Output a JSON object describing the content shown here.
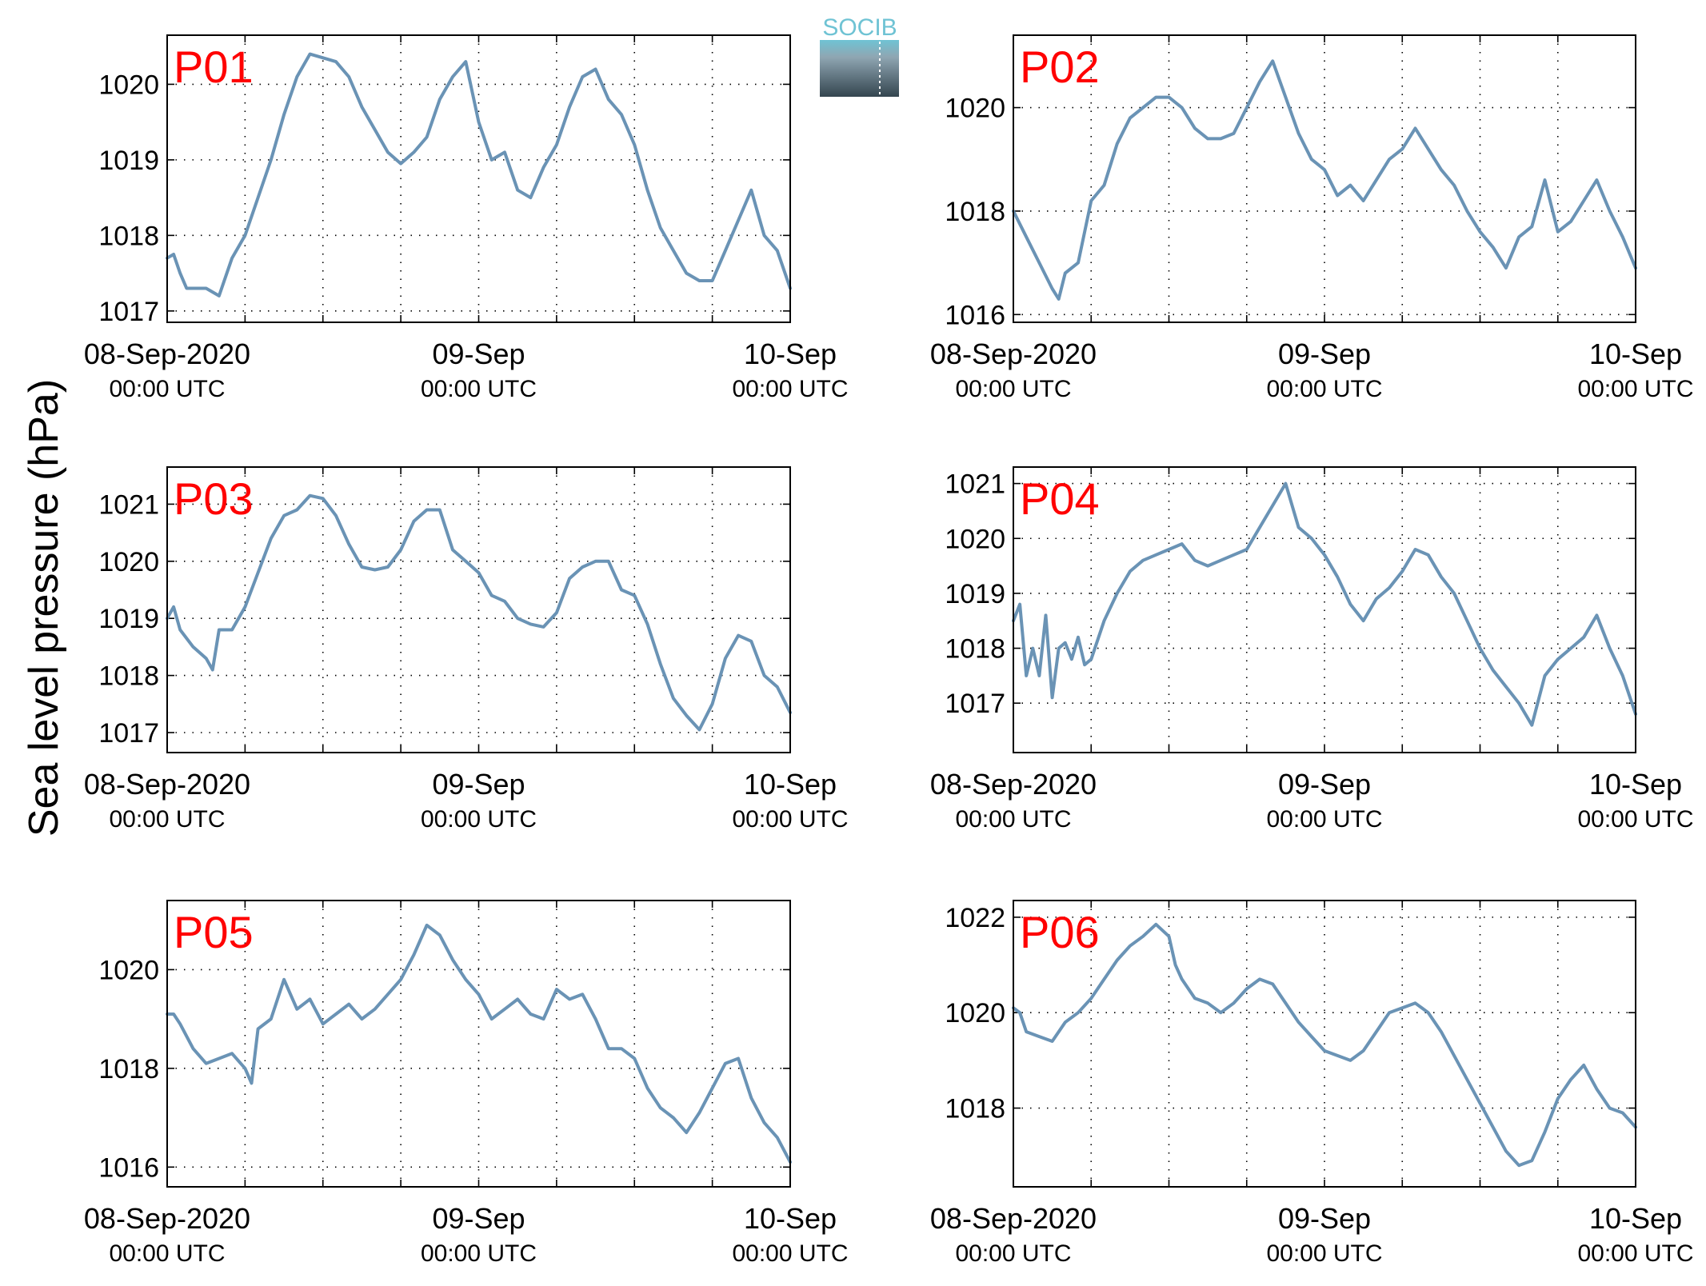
{
  "figure": {
    "ylabel": "Sea level pressure (hPa)",
    "logo_text": "SOCIB",
    "line_color": "#6a93b5",
    "panel_label_color": "#ff0000",
    "grid": "dotted"
  },
  "chart_data": [
    {
      "type": "line",
      "panel_label": "P01",
      "x_unit": "hours since 08-Sep-2020 00:00 UTC",
      "xlim": [
        0,
        48
      ],
      "ylim": [
        1016.85,
        1020.65
      ],
      "yticks": [
        1017,
        1018,
        1019,
        1020
      ],
      "xticks": [
        {
          "x": 0,
          "line1": "08-Sep-2020",
          "line2": "00:00 UTC"
        },
        {
          "x": 24,
          "line1": "09-Sep",
          "line2": "00:00 UTC"
        },
        {
          "x": 48,
          "line1": "10-Sep",
          "line2": "00:00 UTC"
        }
      ],
      "series": [
        {
          "x": [
            0,
            0.5,
            1,
            1.5,
            2,
            3,
            4,
            5,
            6,
            7,
            8,
            9,
            10,
            11,
            12,
            13,
            14,
            15,
            16,
            17,
            18,
            19,
            20,
            21,
            22,
            23,
            24,
            25,
            26,
            27,
            28,
            29,
            30,
            31,
            32,
            33,
            34,
            35,
            36,
            37,
            38,
            39,
            40,
            41,
            42,
            43,
            44,
            45,
            46,
            47,
            48
          ],
          "y": [
            1017.7,
            1017.75,
            1017.5,
            1017.3,
            1017.3,
            1017.3,
            1017.2,
            1017.7,
            1018.0,
            1018.5,
            1019.0,
            1019.6,
            1020.1,
            1020.4,
            1020.35,
            1020.3,
            1020.1,
            1019.7,
            1019.4,
            1019.1,
            1018.95,
            1019.1,
            1019.3,
            1019.8,
            1020.1,
            1020.3,
            1019.5,
            1019.0,
            1019.1,
            1018.6,
            1018.5,
            1018.9,
            1019.2,
            1019.7,
            1020.1,
            1020.2,
            1019.8,
            1019.6,
            1019.2,
            1018.6,
            1018.1,
            1017.8,
            1017.5,
            1017.4,
            1017.4,
            1017.8,
            1018.2,
            1018.6,
            1018.0,
            1017.8,
            1017.3
          ]
        }
      ]
    },
    {
      "type": "line",
      "panel_label": "P02",
      "x_unit": "hours since 08-Sep-2020 00:00 UTC",
      "xlim": [
        0,
        48
      ],
      "ylim": [
        1015.85,
        1021.4
      ],
      "yticks": [
        1016,
        1018,
        1020
      ],
      "xticks": [
        {
          "x": 0,
          "line1": "08-Sep-2020",
          "line2": "00:00 UTC"
        },
        {
          "x": 24,
          "line1": "09-Sep",
          "line2": "00:00 UTC"
        },
        {
          "x": 48,
          "line1": "10-Sep",
          "line2": "00:00 UTC"
        }
      ],
      "series": [
        {
          "x": [
            0,
            1,
            2,
            3,
            3.5,
            4,
            5,
            6,
            7,
            8,
            9,
            10,
            11,
            12,
            13,
            14,
            15,
            16,
            17,
            18,
            19,
            20,
            21,
            22,
            23,
            24,
            25,
            26,
            27,
            28,
            29,
            30,
            31,
            32,
            33,
            34,
            35,
            36,
            37,
            38,
            39,
            40,
            41,
            42,
            43,
            44,
            45,
            46,
            47,
            48
          ],
          "y": [
            1018.0,
            1017.5,
            1017.0,
            1016.5,
            1016.3,
            1016.8,
            1017.0,
            1018.2,
            1018.5,
            1019.3,
            1019.8,
            1020.0,
            1020.2,
            1020.2,
            1020.0,
            1019.6,
            1019.4,
            1019.4,
            1019.5,
            1020.0,
            1020.5,
            1020.9,
            1020.2,
            1019.5,
            1019.0,
            1018.8,
            1018.3,
            1018.5,
            1018.2,
            1018.6,
            1019.0,
            1019.2,
            1019.6,
            1019.2,
            1018.8,
            1018.5,
            1018.0,
            1017.6,
            1017.3,
            1016.9,
            1017.5,
            1017.7,
            1018.6,
            1017.6,
            1017.8,
            1018.2,
            1018.6,
            1018.0,
            1017.5,
            1016.9
          ]
        }
      ]
    },
    {
      "type": "line",
      "panel_label": "P03",
      "x_unit": "hours since 08-Sep-2020 00:00 UTC",
      "xlim": [
        0,
        48
      ],
      "ylim": [
        1016.65,
        1021.65
      ],
      "yticks": [
        1017,
        1018,
        1019,
        1020,
        1021
      ],
      "xticks": [
        {
          "x": 0,
          "line1": "08-Sep-2020",
          "line2": "00:00 UTC"
        },
        {
          "x": 24,
          "line1": "09-Sep",
          "line2": "00:00 UTC"
        },
        {
          "x": 48,
          "line1": "10-Sep",
          "line2": "00:00 UTC"
        }
      ],
      "series": [
        {
          "x": [
            0,
            0.5,
            1,
            2,
            3,
            3.5,
            4,
            5,
            6,
            7,
            8,
            9,
            10,
            11,
            12,
            13,
            14,
            15,
            16,
            17,
            18,
            19,
            20,
            21,
            22,
            23,
            24,
            25,
            26,
            27,
            28,
            29,
            30,
            31,
            32,
            33,
            34,
            35,
            36,
            37,
            38,
            39,
            40,
            41,
            42,
            43,
            44,
            45,
            46,
            47,
            48
          ],
          "y": [
            1019.0,
            1019.2,
            1018.8,
            1018.5,
            1018.3,
            1018.1,
            1018.8,
            1018.8,
            1019.2,
            1019.8,
            1020.4,
            1020.8,
            1020.9,
            1021.15,
            1021.1,
            1020.8,
            1020.3,
            1019.9,
            1019.85,
            1019.9,
            1020.2,
            1020.7,
            1020.9,
            1020.9,
            1020.2,
            1020.0,
            1019.8,
            1019.4,
            1019.3,
            1019.0,
            1018.9,
            1018.85,
            1019.1,
            1019.7,
            1019.9,
            1020.0,
            1020.0,
            1019.5,
            1019.4,
            1018.9,
            1018.2,
            1017.6,
            1017.3,
            1017.05,
            1017.5,
            1018.3,
            1018.7,
            1018.6,
            1018.0,
            1017.8,
            1017.35
          ]
        }
      ]
    },
    {
      "type": "line",
      "panel_label": "P04",
      "x_unit": "hours since 08-Sep-2020 00:00 UTC",
      "xlim": [
        0,
        48
      ],
      "ylim": [
        1016.1,
        1021.3
      ],
      "yticks": [
        1017,
        1018,
        1019,
        1020,
        1021
      ],
      "xticks": [
        {
          "x": 0,
          "line1": "08-Sep-2020",
          "line2": "00:00 UTC"
        },
        {
          "x": 24,
          "line1": "09-Sep",
          "line2": "00:00 UTC"
        },
        {
          "x": 48,
          "line1": "10-Sep",
          "line2": "00:00 UTC"
        }
      ],
      "series": [
        {
          "x": [
            0,
            0.5,
            1,
            1.5,
            2,
            2.5,
            3,
            3.5,
            4,
            4.5,
            5,
            5.5,
            6,
            7,
            8,
            9,
            10,
            11,
            12,
            13,
            14,
            15,
            16,
            17,
            18,
            19,
            20,
            21,
            22,
            23,
            24,
            25,
            26,
            27,
            28,
            29,
            30,
            31,
            32,
            33,
            34,
            35,
            36,
            37,
            38,
            39,
            40,
            41,
            42,
            43,
            44,
            45,
            46,
            47,
            48
          ],
          "y": [
            1018.5,
            1018.8,
            1017.5,
            1018.0,
            1017.5,
            1018.6,
            1017.1,
            1018.0,
            1018.1,
            1017.8,
            1018.2,
            1017.7,
            1017.8,
            1018.5,
            1019.0,
            1019.4,
            1019.6,
            1019.7,
            1019.8,
            1019.9,
            1019.6,
            1019.5,
            1019.6,
            1019.7,
            1019.8,
            1020.2,
            1020.6,
            1021.0,
            1020.2,
            1020.0,
            1019.7,
            1019.3,
            1018.8,
            1018.5,
            1018.9,
            1019.1,
            1019.4,
            1019.8,
            1019.7,
            1019.3,
            1019.0,
            1018.5,
            1018.0,
            1017.6,
            1017.3,
            1017.0,
            1016.6,
            1017.5,
            1017.8,
            1018.0,
            1018.2,
            1018.6,
            1018.0,
            1017.5,
            1016.8
          ]
        }
      ]
    },
    {
      "type": "line",
      "panel_label": "P05",
      "x_unit": "hours since 08-Sep-2020 00:00 UTC",
      "xlim": [
        0,
        48
      ],
      "ylim": [
        1015.6,
        1021.4
      ],
      "yticks": [
        1016,
        1018,
        1020
      ],
      "xticks": [
        {
          "x": 0,
          "line1": "08-Sep-2020",
          "line2": "00:00 UTC"
        },
        {
          "x": 24,
          "line1": "09-Sep",
          "line2": "00:00 UTC"
        },
        {
          "x": 48,
          "line1": "10-Sep",
          "line2": "00:00 UTC"
        }
      ],
      "series": [
        {
          "x": [
            0,
            0.5,
            1,
            2,
            3,
            4,
            5,
            6,
            6.5,
            7,
            8,
            9,
            9.5,
            10,
            11,
            12,
            13,
            14,
            15,
            16,
            17,
            18,
            19,
            20,
            21,
            22,
            23,
            24,
            25,
            26,
            27,
            28,
            29,
            30,
            31,
            32,
            33,
            34,
            35,
            36,
            37,
            38,
            39,
            40,
            41,
            42,
            43,
            44,
            45,
            46,
            47,
            48
          ],
          "y": [
            1019.1,
            1019.1,
            1018.9,
            1018.4,
            1018.1,
            1018.2,
            1018.3,
            1018.0,
            1017.7,
            1018.8,
            1019.0,
            1019.8,
            1019.5,
            1019.2,
            1019.4,
            1018.9,
            1019.1,
            1019.3,
            1019.0,
            1019.2,
            1019.5,
            1019.8,
            1020.3,
            1020.9,
            1020.7,
            1020.2,
            1019.8,
            1019.5,
            1019.0,
            1019.2,
            1019.4,
            1019.1,
            1019.0,
            1019.6,
            1019.4,
            1019.5,
            1019.0,
            1018.4,
            1018.4,
            1018.2,
            1017.6,
            1017.2,
            1017.0,
            1016.7,
            1017.1,
            1017.6,
            1018.1,
            1018.2,
            1017.4,
            1016.9,
            1016.6,
            1016.1
          ]
        }
      ]
    },
    {
      "type": "line",
      "panel_label": "P06",
      "x_unit": "hours since 08-Sep-2020 00:00 UTC",
      "xlim": [
        0,
        48
      ],
      "ylim": [
        1016.35,
        1022.35
      ],
      "yticks": [
        1018,
        1020,
        1022
      ],
      "xticks": [
        {
          "x": 0,
          "line1": "08-Sep-2020",
          "line2": "00:00 UTC"
        },
        {
          "x": 24,
          "line1": "09-Sep",
          "line2": "00:00 UTC"
        },
        {
          "x": 48,
          "line1": "10-Sep",
          "line2": "00:00 UTC"
        }
      ],
      "series": [
        {
          "x": [
            0,
            0.5,
            1,
            2,
            3,
            4,
            5,
            6,
            7,
            8,
            9,
            10,
            11,
            12,
            12.5,
            13,
            14,
            15,
            16,
            17,
            18,
            19,
            20,
            21,
            22,
            23,
            24,
            25,
            26,
            27,
            28,
            29,
            30,
            31,
            32,
            33,
            34,
            35,
            36,
            37,
            38,
            39,
            40,
            41,
            42,
            43,
            44,
            45,
            46,
            47,
            48
          ],
          "y": [
            1020.1,
            1020.0,
            1019.6,
            1019.5,
            1019.4,
            1019.8,
            1020.0,
            1020.3,
            1020.7,
            1021.1,
            1021.4,
            1021.6,
            1021.85,
            1021.6,
            1021.0,
            1020.7,
            1020.3,
            1020.2,
            1020.0,
            1020.2,
            1020.5,
            1020.7,
            1020.6,
            1020.2,
            1019.8,
            1019.5,
            1019.2,
            1019.1,
            1019.0,
            1019.2,
            1019.6,
            1020.0,
            1020.1,
            1020.2,
            1020.0,
            1019.6,
            1019.1,
            1018.6,
            1018.1,
            1017.6,
            1017.1,
            1016.8,
            1016.9,
            1017.5,
            1018.2,
            1018.6,
            1018.9,
            1018.4,
            1018.0,
            1017.9,
            1017.6
          ]
        }
      ]
    }
  ]
}
